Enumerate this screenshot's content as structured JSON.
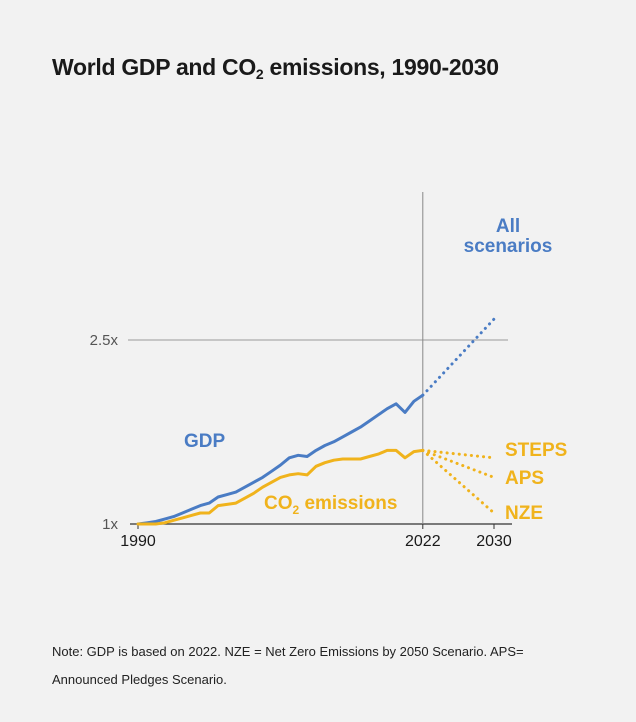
{
  "title": {
    "main": "World GDP and CO",
    "sub": "2",
    "rest": " emissions, 1990-2030"
  },
  "note": "Note: GDP is based on 2022. NZE = Net Zero Emissions by 2050 Scenario. APS= Announced Pledges Scenario.",
  "colors": {
    "gdp": "#4a7cc4",
    "co2": "#f0b31c",
    "axis": "#333333",
    "gridline": "#999999",
    "text": "#1a1a1a"
  },
  "chart_data": {
    "type": "line",
    "xlim": [
      1990,
      2030
    ],
    "ylim": [
      1.0,
      2.5
    ],
    "x_ticks": [
      1990,
      2022,
      2030
    ],
    "y_ticks": [
      {
        "value": 1.0,
        "label": "1x"
      },
      {
        "value": 2.5,
        "label": "2.5x"
      }
    ],
    "vertical_marker": 2022,
    "series": [
      {
        "name": "GDP",
        "style": "solid",
        "color": "#4a7cc4",
        "x": [
          1990,
          1991,
          1992,
          1993,
          1994,
          1995,
          1996,
          1997,
          1998,
          1999,
          2000,
          2001,
          2002,
          2003,
          2004,
          2005,
          2006,
          2007,
          2008,
          2009,
          2010,
          2011,
          2012,
          2013,
          2014,
          2015,
          2016,
          2017,
          2018,
          2019,
          2020,
          2021,
          2022
        ],
        "values": [
          1.0,
          1.01,
          1.02,
          1.04,
          1.06,
          1.09,
          1.12,
          1.15,
          1.17,
          1.22,
          1.24,
          1.26,
          1.3,
          1.34,
          1.38,
          1.43,
          1.48,
          1.54,
          1.56,
          1.55,
          1.6,
          1.64,
          1.67,
          1.71,
          1.75,
          1.79,
          1.84,
          1.89,
          1.94,
          1.98,
          1.91,
          2.0,
          2.05
        ]
      },
      {
        "name": "CO2 emissions",
        "style": "solid",
        "color": "#f0b31c",
        "x": [
          1990,
          1991,
          1992,
          1993,
          1994,
          1995,
          1996,
          1997,
          1998,
          1999,
          2000,
          2001,
          2002,
          2003,
          2004,
          2005,
          2006,
          2007,
          2008,
          2009,
          2010,
          2011,
          2012,
          2013,
          2014,
          2015,
          2016,
          2017,
          2018,
          2019,
          2020,
          2021,
          2022
        ],
        "values": [
          1.0,
          1.0,
          1.0,
          1.01,
          1.03,
          1.05,
          1.07,
          1.09,
          1.09,
          1.15,
          1.16,
          1.17,
          1.21,
          1.25,
          1.3,
          1.34,
          1.38,
          1.4,
          1.41,
          1.4,
          1.47,
          1.5,
          1.52,
          1.53,
          1.53,
          1.53,
          1.55,
          1.57,
          1.6,
          1.6,
          1.54,
          1.59,
          1.6
        ]
      },
      {
        "name": "All scenarios",
        "style": "dotted",
        "color": "#4a7cc4",
        "x": [
          2022,
          2030
        ],
        "values": [
          2.05,
          2.67
        ]
      },
      {
        "name": "STEPS",
        "style": "dotted",
        "color": "#f0b31c",
        "x": [
          2022,
          2030
        ],
        "values": [
          1.6,
          1.54
        ]
      },
      {
        "name": "APS",
        "style": "dotted",
        "color": "#f0b31c",
        "x": [
          2022,
          2030
        ],
        "values": [
          1.6,
          1.38
        ]
      },
      {
        "name": "NZE",
        "style": "dotted",
        "color": "#f0b31c",
        "x": [
          2022,
          2030
        ],
        "values": [
          1.6,
          1.09
        ]
      }
    ],
    "labels": {
      "gdp": "GDP",
      "co2_main": "CO",
      "co2_sub": "2",
      "co2_rest": " emissions",
      "all_line1": "All",
      "all_line2": "scenarios",
      "steps": "STEPS",
      "aps": "APS",
      "nze": "NZE"
    }
  }
}
